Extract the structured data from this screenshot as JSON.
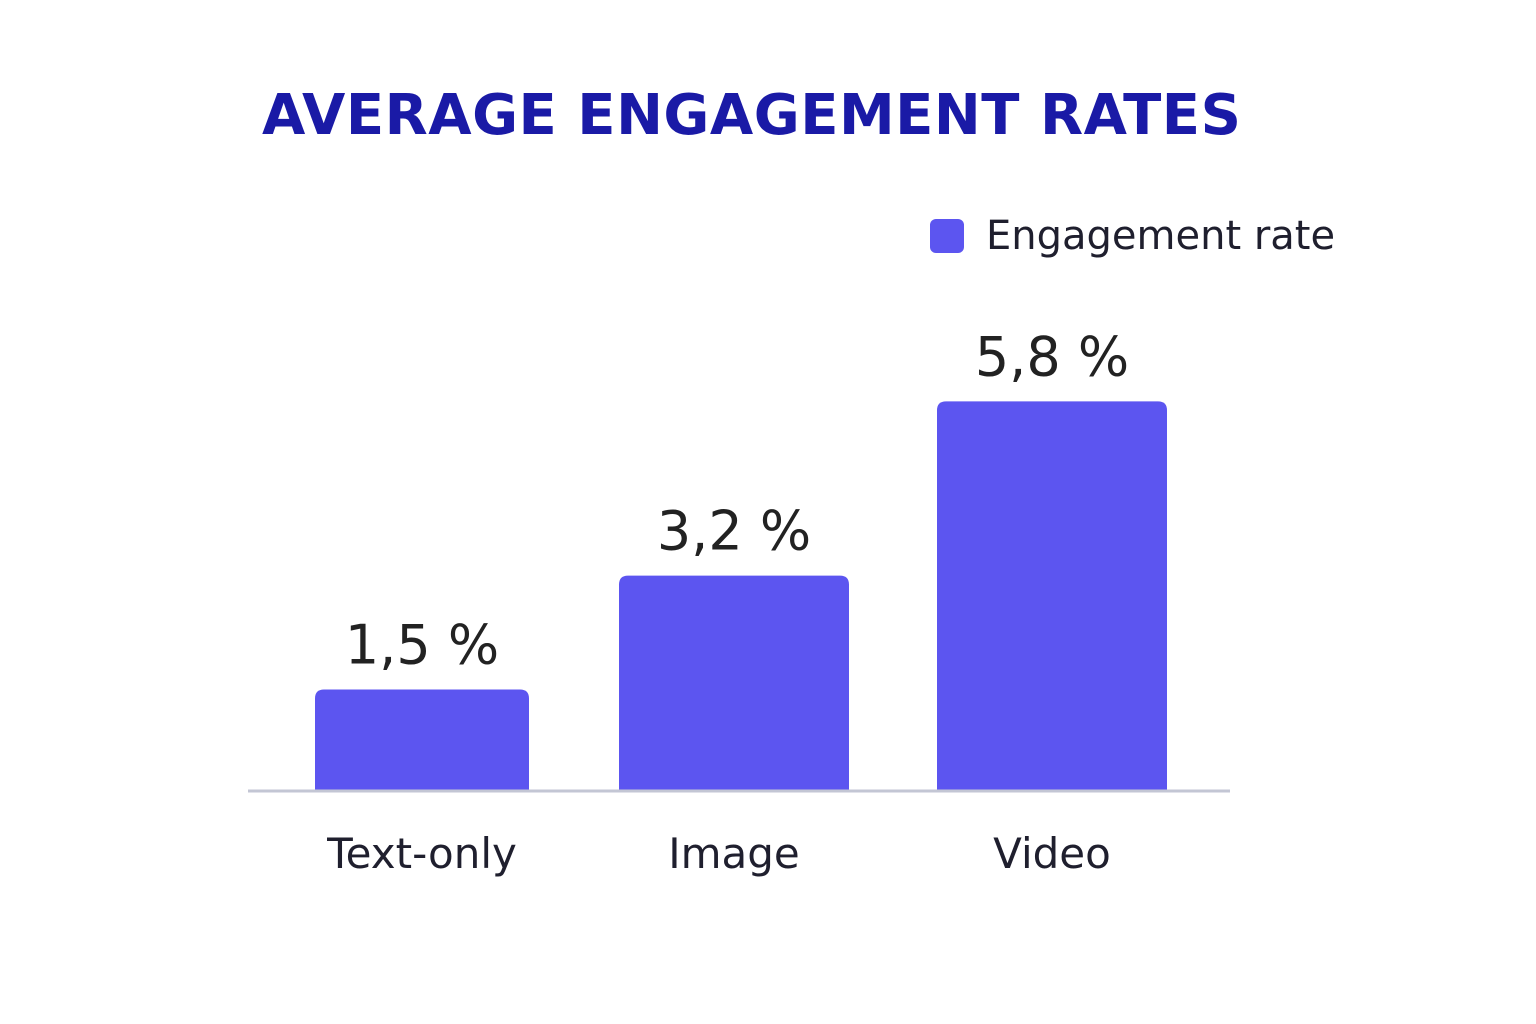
{
  "chart_data": {
    "type": "bar",
    "title": "AVERAGE ENGAGEMENT RATES",
    "categories": [
      "Text-only",
      "Image",
      "Video"
    ],
    "series": [
      {
        "name": "Engagement rate",
        "values": [
          1.5,
          3.2,
          5.8
        ],
        "labels": [
          "1,5 %",
          "3,2 %",
          "5,8 %"
        ]
      }
    ],
    "unit": "%",
    "legend": "top-right",
    "grid": false,
    "colors": {
      "bar": "#5c55f0",
      "title": "#1a1aa6",
      "baseline": "#c3c6d4"
    }
  }
}
